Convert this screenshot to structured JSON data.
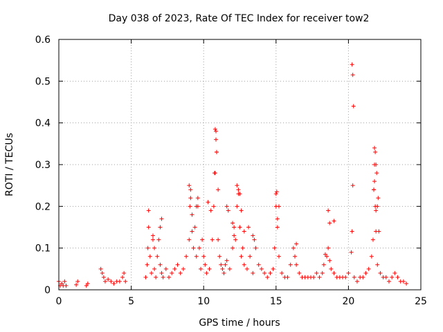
{
  "chart_data": {
    "type": "scatter",
    "title": "Day 038 of 2023, Rate Of TEC Index for receiver tow2",
    "xlabel": "GPS time / hours",
    "ylabel": "ROTI / TECUs",
    "xlim": [
      0,
      25
    ],
    "ylim": [
      0,
      0.6
    ],
    "x_ticks": [
      "0",
      "5",
      "10",
      "15",
      "20",
      "25"
    ],
    "y_ticks": [
      "0",
      "0.1",
      "0.2",
      "0.3",
      "0.4",
      "0.5",
      "0.6"
    ],
    "grid": true,
    "legend": "none",
    "marker": "+",
    "color": "#ff0000",
    "series": [
      {
        "x": [
          0.0,
          0.1,
          0.2,
          0.3,
          0.4,
          0.5,
          1.2,
          1.3,
          1.9,
          2.0,
          2.9,
          3.0,
          3.1,
          3.2,
          3.4,
          3.6,
          3.8,
          4.0,
          4.2,
          4.4,
          4.5,
          4.6,
          6.0,
          6.1,
          6.15,
          6.2,
          6.3,
          6.4,
          6.5,
          6.6,
          6.7,
          6.8,
          6.9,
          7.0,
          7.1,
          7.2,
          7.4,
          7.6,
          7.8,
          8.0,
          8.2,
          8.4,
          8.6,
          8.8,
          9.0,
          9.05,
          9.1,
          9.2,
          9.3,
          9.4,
          9.5,
          9.6,
          9.7,
          9.8,
          9.9,
          10.0,
          10.1,
          10.2,
          10.4,
          10.6,
          10.7,
          10.8,
          10.85,
          10.9,
          11.0,
          11.1,
          11.2,
          11.3,
          11.4,
          11.5,
          11.6,
          11.8,
          12.0,
          12.1,
          12.2,
          12.3,
          12.4,
          12.5,
          12.6,
          12.7,
          12.8,
          13.0,
          13.2,
          13.4,
          13.5,
          13.6,
          13.8,
          14.0,
          14.2,
          14.4,
          14.6,
          14.8,
          14.9,
          15.0,
          15.1,
          15.2,
          15.4,
          15.6,
          15.8,
          16.0,
          16.2,
          16.3,
          16.4,
          16.6,
          16.8,
          17.0,
          17.2,
          17.4,
          17.6,
          17.8,
          18.0,
          18.2,
          18.3,
          18.5,
          18.6,
          18.7,
          18.8,
          19.0,
          19.2,
          19.4,
          19.6,
          19.8,
          20.0,
          20.2,
          20.25,
          20.3,
          20.4,
          20.6,
          20.8,
          21.0,
          21.2,
          21.4,
          21.6,
          21.7,
          21.75,
          21.8,
          21.85,
          21.9,
          22.0,
          22.2,
          22.4,
          22.6,
          22.8,
          23.0,
          23.2,
          23.4,
          23.6,
          23.8,
          24.0,
          6.2,
          6.5,
          6.6,
          7.0,
          7.1,
          9.0,
          9.1,
          9.2,
          9.5,
          9.6,
          10.3,
          10.5,
          10.75,
          10.8,
          10.85,
          10.9,
          11.0,
          11.6,
          11.7,
          12.0,
          12.1,
          12.3,
          12.4,
          12.5,
          12.6,
          12.8,
          13.1,
          13.4,
          15.0,
          15.05,
          15.1,
          15.2,
          16.4,
          18.4,
          18.6,
          18.7,
          19.0,
          20.25,
          20.3,
          20.35,
          21.8,
          21.85,
          21.9,
          21.95,
          22.0,
          22.05,
          22.1,
          21.75,
          21.8,
          21.9
        ],
        "y": [
          0.02,
          0.01,
          0.015,
          0.01,
          0.02,
          0.01,
          0.012,
          0.02,
          0.01,
          0.015,
          0.05,
          0.04,
          0.03,
          0.02,
          0.025,
          0.02,
          0.015,
          0.02,
          0.02,
          0.03,
          0.04,
          0.02,
          0.03,
          0.06,
          0.1,
          0.15,
          0.08,
          0.04,
          0.12,
          0.05,
          0.03,
          0.08,
          0.12,
          0.06,
          0.04,
          0.03,
          0.05,
          0.03,
          0.04,
          0.05,
          0.06,
          0.04,
          0.05,
          0.08,
          0.12,
          0.2,
          0.24,
          0.18,
          0.1,
          0.15,
          0.08,
          0.2,
          0.1,
          0.05,
          0.12,
          0.08,
          0.06,
          0.04,
          0.05,
          0.12,
          0.2,
          0.28,
          0.38,
          0.33,
          0.12,
          0.08,
          0.06,
          0.05,
          0.04,
          0.06,
          0.07,
          0.05,
          0.1,
          0.15,
          0.12,
          0.2,
          0.23,
          0.15,
          0.08,
          0.1,
          0.06,
          0.05,
          0.08,
          0.04,
          0.12,
          0.1,
          0.06,
          0.05,
          0.04,
          0.03,
          0.04,
          0.05,
          0.1,
          0.2,
          0.15,
          0.08,
          0.04,
          0.03,
          0.03,
          0.06,
          0.1,
          0.08,
          0.06,
          0.04,
          0.03,
          0.03,
          0.03,
          0.03,
          0.03,
          0.04,
          0.03,
          0.04,
          0.06,
          0.08,
          0.1,
          0.07,
          0.05,
          0.04,
          0.03,
          0.03,
          0.03,
          0.03,
          0.04,
          0.09,
          0.14,
          0.25,
          0.03,
          0.02,
          0.03,
          0.03,
          0.04,
          0.05,
          0.08,
          0.12,
          0.24,
          0.3,
          0.2,
          0.14,
          0.06,
          0.04,
          0.03,
          0.03,
          0.02,
          0.03,
          0.04,
          0.03,
          0.02,
          0.02,
          0.015,
          0.19,
          0.13,
          0.1,
          0.15,
          0.17,
          0.25,
          0.22,
          0.14,
          0.2,
          0.22,
          0.21,
          0.19,
          0.28,
          0.385,
          0.36,
          0.33,
          0.24,
          0.2,
          0.19,
          0.16,
          0.13,
          0.25,
          0.24,
          0.23,
          0.19,
          0.14,
          0.15,
          0.13,
          0.23,
          0.235,
          0.17,
          0.2,
          0.11,
          0.085,
          0.19,
          0.16,
          0.165,
          0.54,
          0.515,
          0.44,
          0.34,
          0.33,
          0.3,
          0.28,
          0.2,
          0.22,
          0.14,
          0.24,
          0.26,
          0.19
        ]
      }
    ]
  }
}
